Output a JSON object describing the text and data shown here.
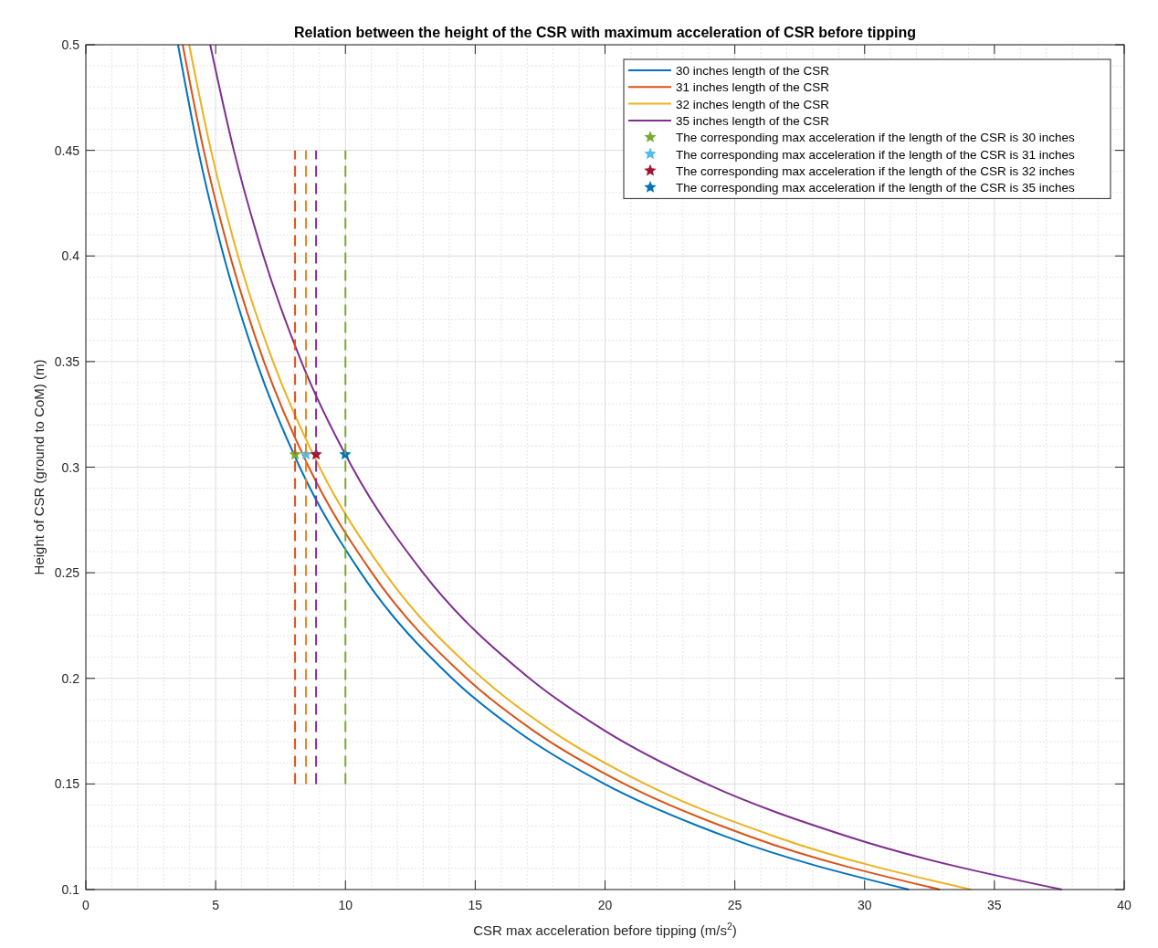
{
  "chart_data": {
    "type": "line",
    "title": "Relation between the height of the CSR with maximum acceleration of CSR before tipping",
    "xlabel": "CSR max acceleration before tipping (m/s$^{2}$)",
    "ylabel": "Height of CSR (ground to CoM) (m)",
    "xlim": [
      0,
      40
    ],
    "ylim": [
      0.1,
      0.5
    ],
    "xticks": [
      0,
      5,
      10,
      15,
      20,
      25,
      30,
      35,
      40
    ],
    "yticks": [
      0.1,
      0.15,
      0.2,
      0.25,
      0.3,
      0.35,
      0.4,
      0.45,
      0.5
    ],
    "grid": true,
    "legend": "top right",
    "series": [
      {
        "name": "30 inches length of the CSR",
        "color": "#0072bd",
        "x": [
          3.55,
          4.33,
          5.31,
          6.57,
          8.24,
          10.59,
          14.11,
          16.62,
          19.98,
          24.67,
          31.71
        ],
        "values": [
          0.5,
          0.45,
          0.4,
          0.35,
          0.3,
          0.25,
          0.2,
          0.175,
          0.15,
          0.125,
          0.1
        ]
      },
      {
        "name": "31 inches length of the CSR",
        "color": "#d95319",
        "x": [
          3.73,
          4.54,
          5.56,
          6.86,
          8.59,
          11.02,
          14.67,
          17.27,
          20.75,
          25.61,
          32.9
        ],
        "values": [
          0.5,
          0.45,
          0.4,
          0.35,
          0.3,
          0.25,
          0.2,
          0.175,
          0.15,
          0.125,
          0.1
        ]
      },
      {
        "name": "32 inches length of the CSR",
        "color": "#edb120",
        "x": [
          3.98,
          4.82,
          5.86,
          7.21,
          9.0,
          11.51,
          15.28,
          17.96,
          21.55,
          26.57,
          34.1
        ],
        "values": [
          0.5,
          0.45,
          0.4,
          0.35,
          0.3,
          0.25,
          0.2,
          0.175,
          0.15,
          0.125,
          0.1
        ]
      },
      {
        "name": "35 inches length of the CSR",
        "color": "#7e2f8e",
        "x": [
          4.79,
          5.7,
          6.84,
          8.3,
          10.26,
          12.99,
          17.09,
          20.02,
          23.92,
          29.39,
          37.6
        ],
        "values": [
          0.5,
          0.45,
          0.4,
          0.35,
          0.3,
          0.25,
          0.2,
          0.175,
          0.15,
          0.125,
          0.1
        ]
      },
      {
        "type": "scatter",
        "name": "The corresponding max acceleration if the length of the CSR is 30 inches",
        "color": "#77ac30",
        "marker": "star",
        "x": [
          8.06
        ],
        "values": [
          0.306
        ]
      },
      {
        "type": "scatter",
        "name": "The corresponding max acceleration if the length of the CSR is 31 inches",
        "color": "#4dbeee",
        "marker": "star",
        "x": [
          8.48
        ],
        "values": [
          0.306
        ]
      },
      {
        "type": "scatter",
        "name": "The corresponding max acceleration if the length of the CSR is 32 inches",
        "color": "#a2142f",
        "marker": "star",
        "x": [
          8.87
        ],
        "values": [
          0.306
        ]
      },
      {
        "type": "scatter",
        "name": "The corresponding max acceleration if the length of the CSR is 35 inches",
        "color": "#0072bd",
        "marker": "star",
        "x": [
          9.99
        ],
        "values": [
          0.306
        ]
      },
      {
        "type": "line",
        "color": "#d95319",
        "line_style": "dashed",
        "x": [
          8.06,
          8.06
        ],
        "values": [
          0.15,
          0.45
        ]
      },
      {
        "type": "line",
        "color": "#e8871e",
        "line_style": "dashed",
        "x": [
          8.48,
          8.48
        ],
        "values": [
          0.15,
          0.45
        ]
      },
      {
        "type": "line",
        "color": "#7e2f8e",
        "line_style": "dashed",
        "x": [
          8.87,
          8.87
        ],
        "values": [
          0.15,
          0.45
        ]
      },
      {
        "type": "line",
        "color": "#77ac30",
        "line_style": "dashed",
        "x": [
          10,
          10
        ],
        "values": [
          0.15,
          0.45
        ]
      }
    ]
  }
}
